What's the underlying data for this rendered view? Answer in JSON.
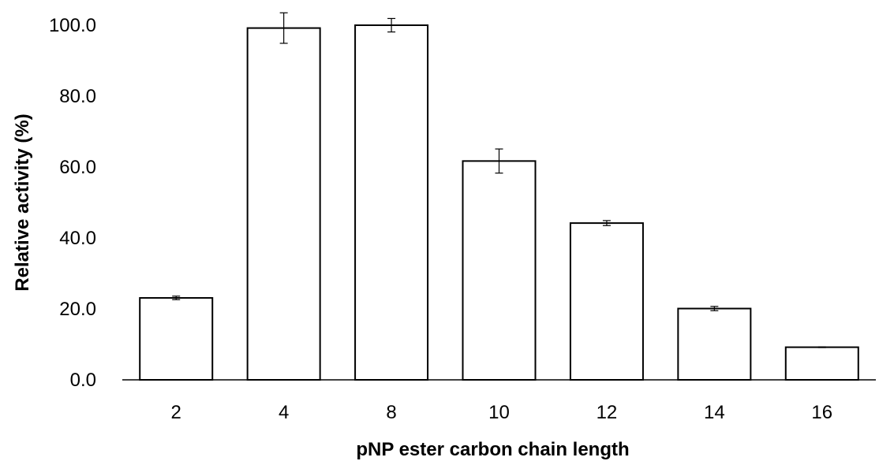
{
  "chart_data": {
    "type": "bar",
    "title": "",
    "xlabel": "pNP ester carbon chain length",
    "ylabel": "Relative activity (%)",
    "categories": [
      "2",
      "4",
      "8",
      "10",
      "12",
      "14",
      "16"
    ],
    "values": [
      23.1,
      99.2,
      100.0,
      61.7,
      44.2,
      20.1,
      9.2
    ],
    "error": [
      0.5,
      4.3,
      1.9,
      3.4,
      0.7,
      0.6,
      0.1
    ],
    "ylim": [
      0,
      100
    ],
    "yticks": [
      "0.0",
      "20.0",
      "40.0",
      "60.0",
      "80.0",
      "100.0"
    ],
    "grid": false,
    "legend": "none",
    "colors": {
      "bar_fill": "#ffffff",
      "bar_stroke": "#000000",
      "axis": "#000000"
    }
  }
}
